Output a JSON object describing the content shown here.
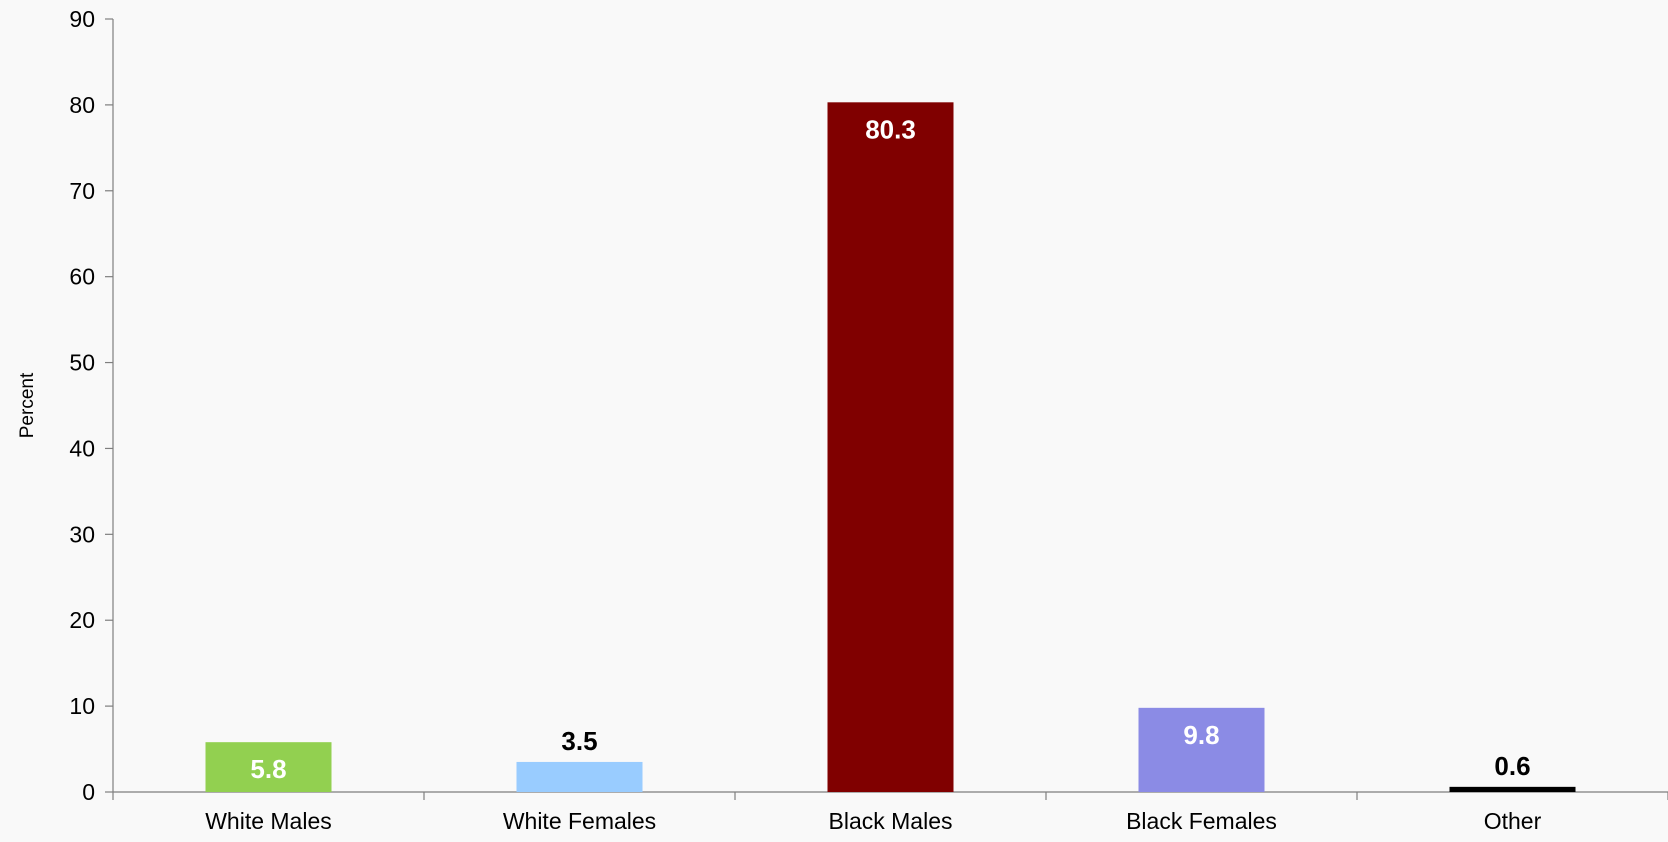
{
  "chart_data": {
    "type": "bar",
    "title": "",
    "xlabel": "",
    "ylabel": "Percent",
    "categories": [
      "White Males",
      "White Females",
      "Black Males",
      "Black Females",
      "Other"
    ],
    "values": [
      5.8,
      3.5,
      80.3,
      9.8,
      0.6
    ],
    "value_labels": [
      "5.8",
      "3.5",
      "80.3",
      "9.8",
      "0.6"
    ],
    "bar_colors": [
      "#92d050",
      "#99ccff",
      "#800000",
      "#8b8be5",
      "#000000"
    ],
    "label_colors": [
      "#ffffff",
      "#000000",
      "#ffffff",
      "#ffffff",
      "#000000"
    ],
    "label_positions": [
      "inside",
      "outside",
      "inside",
      "inside",
      "outside"
    ],
    "ylim": [
      0,
      90
    ],
    "yticks": [
      0,
      10,
      20,
      30,
      40,
      50,
      60,
      70,
      80,
      90
    ],
    "grid": false,
    "legend": "none"
  }
}
